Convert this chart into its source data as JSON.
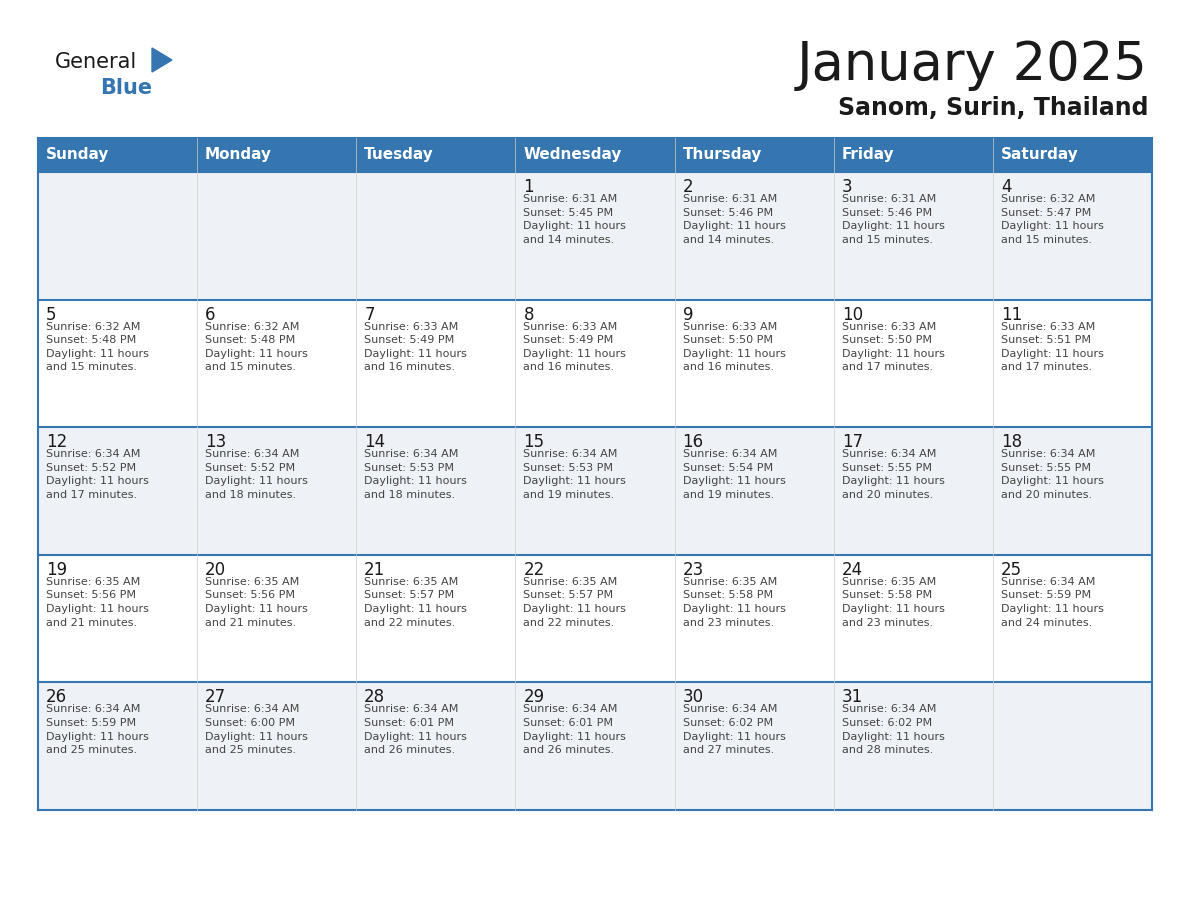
{
  "title": "January 2025",
  "subtitle": "Sanom, Surin, Thailand",
  "header_bg_color": "#3575b0",
  "header_text_color": "#ffffff",
  "cell_bg_even": "#eef2f7",
  "cell_bg_odd": "#ffffff",
  "border_color": "#3575b0",
  "day_headers": [
    "Sunday",
    "Monday",
    "Tuesday",
    "Wednesday",
    "Thursday",
    "Friday",
    "Saturday"
  ],
  "title_color": "#1a1a1a",
  "subtitle_color": "#1a1a1a",
  "day_number_color": "#1a1a1a",
  "cell_text_color": "#444444",
  "logo_general_color": "#1a1a1a",
  "logo_blue_color": "#3575b0",
  "logo_triangle_color": "#3575b0",
  "calendar": [
    [
      {
        "day": null,
        "info": null
      },
      {
        "day": null,
        "info": null
      },
      {
        "day": null,
        "info": null
      },
      {
        "day": "1",
        "info": "Sunrise: 6:31 AM\nSunset: 5:45 PM\nDaylight: 11 hours\nand 14 minutes."
      },
      {
        "day": "2",
        "info": "Sunrise: 6:31 AM\nSunset: 5:46 PM\nDaylight: 11 hours\nand 14 minutes."
      },
      {
        "day": "3",
        "info": "Sunrise: 6:31 AM\nSunset: 5:46 PM\nDaylight: 11 hours\nand 15 minutes."
      },
      {
        "day": "4",
        "info": "Sunrise: 6:32 AM\nSunset: 5:47 PM\nDaylight: 11 hours\nand 15 minutes."
      }
    ],
    [
      {
        "day": "5",
        "info": "Sunrise: 6:32 AM\nSunset: 5:48 PM\nDaylight: 11 hours\nand 15 minutes."
      },
      {
        "day": "6",
        "info": "Sunrise: 6:32 AM\nSunset: 5:48 PM\nDaylight: 11 hours\nand 15 minutes."
      },
      {
        "day": "7",
        "info": "Sunrise: 6:33 AM\nSunset: 5:49 PM\nDaylight: 11 hours\nand 16 minutes."
      },
      {
        "day": "8",
        "info": "Sunrise: 6:33 AM\nSunset: 5:49 PM\nDaylight: 11 hours\nand 16 minutes."
      },
      {
        "day": "9",
        "info": "Sunrise: 6:33 AM\nSunset: 5:50 PM\nDaylight: 11 hours\nand 16 minutes."
      },
      {
        "day": "10",
        "info": "Sunrise: 6:33 AM\nSunset: 5:50 PM\nDaylight: 11 hours\nand 17 minutes."
      },
      {
        "day": "11",
        "info": "Sunrise: 6:33 AM\nSunset: 5:51 PM\nDaylight: 11 hours\nand 17 minutes."
      }
    ],
    [
      {
        "day": "12",
        "info": "Sunrise: 6:34 AM\nSunset: 5:52 PM\nDaylight: 11 hours\nand 17 minutes."
      },
      {
        "day": "13",
        "info": "Sunrise: 6:34 AM\nSunset: 5:52 PM\nDaylight: 11 hours\nand 18 minutes."
      },
      {
        "day": "14",
        "info": "Sunrise: 6:34 AM\nSunset: 5:53 PM\nDaylight: 11 hours\nand 18 minutes."
      },
      {
        "day": "15",
        "info": "Sunrise: 6:34 AM\nSunset: 5:53 PM\nDaylight: 11 hours\nand 19 minutes."
      },
      {
        "day": "16",
        "info": "Sunrise: 6:34 AM\nSunset: 5:54 PM\nDaylight: 11 hours\nand 19 minutes."
      },
      {
        "day": "17",
        "info": "Sunrise: 6:34 AM\nSunset: 5:55 PM\nDaylight: 11 hours\nand 20 minutes."
      },
      {
        "day": "18",
        "info": "Sunrise: 6:34 AM\nSunset: 5:55 PM\nDaylight: 11 hours\nand 20 minutes."
      }
    ],
    [
      {
        "day": "19",
        "info": "Sunrise: 6:35 AM\nSunset: 5:56 PM\nDaylight: 11 hours\nand 21 minutes."
      },
      {
        "day": "20",
        "info": "Sunrise: 6:35 AM\nSunset: 5:56 PM\nDaylight: 11 hours\nand 21 minutes."
      },
      {
        "day": "21",
        "info": "Sunrise: 6:35 AM\nSunset: 5:57 PM\nDaylight: 11 hours\nand 22 minutes."
      },
      {
        "day": "22",
        "info": "Sunrise: 6:35 AM\nSunset: 5:57 PM\nDaylight: 11 hours\nand 22 minutes."
      },
      {
        "day": "23",
        "info": "Sunrise: 6:35 AM\nSunset: 5:58 PM\nDaylight: 11 hours\nand 23 minutes."
      },
      {
        "day": "24",
        "info": "Sunrise: 6:35 AM\nSunset: 5:58 PM\nDaylight: 11 hours\nand 23 minutes."
      },
      {
        "day": "25",
        "info": "Sunrise: 6:34 AM\nSunset: 5:59 PM\nDaylight: 11 hours\nand 24 minutes."
      }
    ],
    [
      {
        "day": "26",
        "info": "Sunrise: 6:34 AM\nSunset: 5:59 PM\nDaylight: 11 hours\nand 25 minutes."
      },
      {
        "day": "27",
        "info": "Sunrise: 6:34 AM\nSunset: 6:00 PM\nDaylight: 11 hours\nand 25 minutes."
      },
      {
        "day": "28",
        "info": "Sunrise: 6:34 AM\nSunset: 6:01 PM\nDaylight: 11 hours\nand 26 minutes."
      },
      {
        "day": "29",
        "info": "Sunrise: 6:34 AM\nSunset: 6:01 PM\nDaylight: 11 hours\nand 26 minutes."
      },
      {
        "day": "30",
        "info": "Sunrise: 6:34 AM\nSunset: 6:02 PM\nDaylight: 11 hours\nand 27 minutes."
      },
      {
        "day": "31",
        "info": "Sunrise: 6:34 AM\nSunset: 6:02 PM\nDaylight: 11 hours\nand 28 minutes."
      },
      {
        "day": null,
        "info": null
      }
    ]
  ]
}
